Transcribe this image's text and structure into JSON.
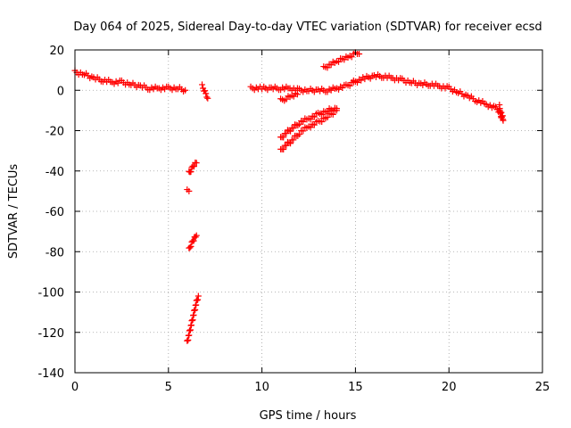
{
  "chart_data": {
    "type": "scatter",
    "title": "Day 064 of 2025, Sidereal Day-to-day VTEC variation (SDTVAR) for receiver ecsd",
    "xlabel": "GPS time / hours",
    "ylabel": "SDTVAR / TECUs",
    "xlim": [
      0,
      25
    ],
    "ylim": [
      -140,
      20
    ],
    "xticks": [
      0,
      5,
      10,
      15,
      20,
      25
    ],
    "yticks": [
      20,
      0,
      -20,
      -40,
      -60,
      -80,
      -100,
      -120,
      -140
    ],
    "grid": true,
    "marker": "plus",
    "color": "#ff0000",
    "series": [
      {
        "name": "SDTVAR",
        "tracks": [
          {
            "x": [
              0.0,
              0.5,
              1.0,
              1.5,
              2.0,
              2.5,
              3.0,
              3.5,
              4.0,
              4.5,
              5.0,
              5.5,
              5.9
            ],
            "y": [
              9,
              8,
              6,
              5,
              4,
              4,
              3,
              2,
              1,
              1,
              1,
              1,
              0
            ]
          },
          {
            "x": [
              6.8,
              6.9,
              7.0,
              7.1
            ],
            "y": [
              2,
              0,
              -2,
              -4
            ]
          },
          {
            "x": [
              6.1,
              6.2,
              6.3,
              6.5
            ],
            "y": [
              -41,
              -40,
              -38,
              -36
            ]
          },
          {
            "x": [
              6.0,
              6.1
            ],
            "y": [
              -50,
              -50
            ]
          },
          {
            "x": [
              6.1,
              6.2,
              6.3,
              6.5
            ],
            "y": [
              -79,
              -77,
              -75,
              -72
            ]
          },
          {
            "x": [
              6.0,
              6.1,
              6.2,
              6.3,
              6.4,
              6.5,
              6.6
            ],
            "y": [
              -125,
              -121,
              -117,
              -113,
              -109,
              -105,
              -102
            ]
          },
          {
            "x": [
              9.4,
              10.0,
              10.5,
              11.0,
              11.5,
              12.0,
              12.5,
              13.0,
              13.5,
              14.0,
              14.5,
              14.9
            ],
            "y": [
              1,
              1,
              1,
              1,
              1,
              0,
              0,
              0,
              0,
              1,
              2,
              4
            ]
          },
          {
            "x": [
              11.0,
              11.3,
              11.6,
              11.9
            ],
            "y": [
              -5,
              -4,
              -3,
              -2
            ]
          },
          {
            "x": [
              13.3,
              13.7,
              14.0,
              14.4,
              14.7,
              15.0,
              15.2
            ],
            "y": [
              11,
              13,
              14,
              16,
              17,
              18,
              18
            ]
          },
          {
            "x": [
              11.0,
              11.3,
              11.6,
              12.0,
              12.5,
              13.0,
              13.5,
              14.0
            ],
            "y": [
              -30,
              -27,
              -25,
              -21,
              -18,
              -16,
              -13,
              -10
            ]
          },
          {
            "x": [
              11.0,
              11.3,
              11.6,
              12.0,
              12.5,
              13.0,
              13.5,
              14.0
            ],
            "y": [
              -24,
              -21,
              -19,
              -16,
              -14,
              -12,
              -10,
              -9
            ]
          },
          {
            "x": [
              14.9,
              15.5,
              16.0,
              16.5,
              17.0,
              17.5,
              18.0,
              18.5,
              19.0,
              19.5,
              20.0,
              20.5,
              21.0,
              21.5,
              22.0,
              22.5,
              22.8
            ],
            "y": [
              4,
              6,
              7,
              7,
              6,
              5,
              4,
              3,
              3,
              2,
              1,
              -1,
              -3,
              -5,
              -7,
              -9,
              -11
            ]
          },
          {
            "x": [
              22.7,
              22.75,
              22.8,
              22.85,
              22.9
            ],
            "y": [
              -8,
              -11,
              -14,
              -12,
              -15
            ]
          }
        ]
      }
    ]
  }
}
